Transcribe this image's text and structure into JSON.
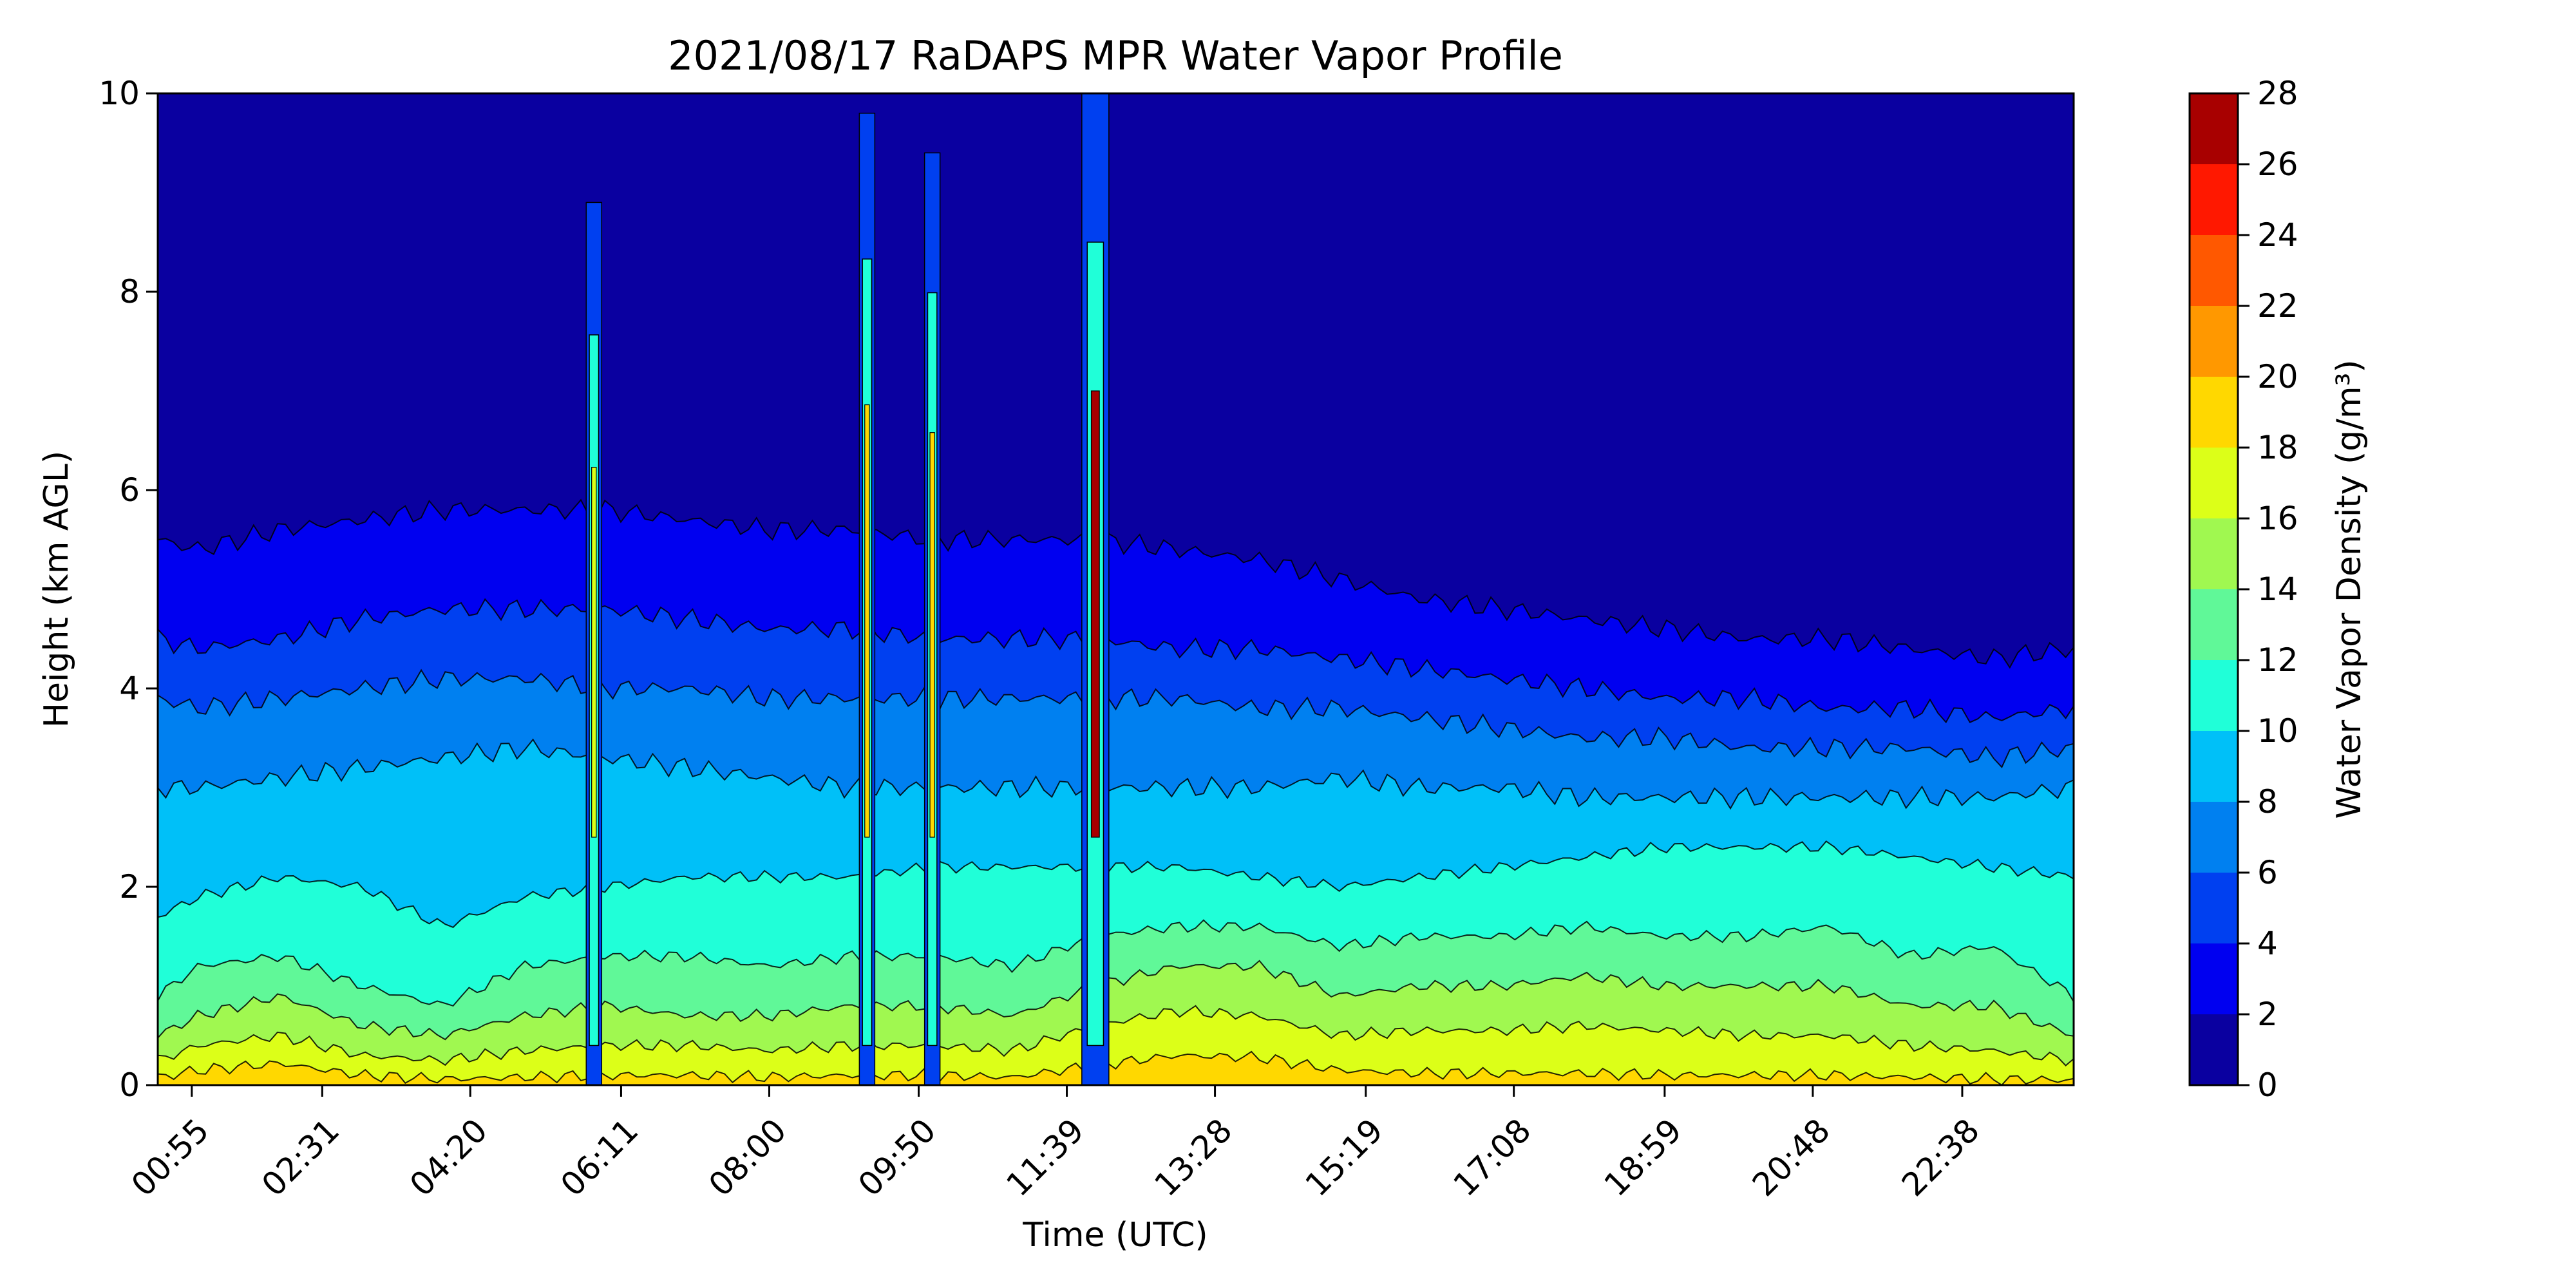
{
  "chart_data": {
    "type": "heatmap",
    "title": "2021/08/17 RaDAPS MPR Water Vapor Profile",
    "xlabel": "Time (UTC)",
    "ylabel": "Height (km AGL)",
    "colorbar_label": "Water Vapor Density (g/m³)",
    "x_unit": "hours UTC",
    "xlim": [
      0.5,
      24.0
    ],
    "ylim": [
      0,
      10
    ],
    "x_ticks": [
      {
        "label": "00:55",
        "hours": 0.917
      },
      {
        "label": "02:31",
        "hours": 2.517
      },
      {
        "label": "04:20",
        "hours": 4.333
      },
      {
        "label": "06:11",
        "hours": 6.183
      },
      {
        "label": "08:00",
        "hours": 8.0
      },
      {
        "label": "09:50",
        "hours": 9.833
      },
      {
        "label": "11:39",
        "hours": 11.65
      },
      {
        "label": "13:28",
        "hours": 13.467
      },
      {
        "label": "15:19",
        "hours": 15.317
      },
      {
        "label": "17:08",
        "hours": 17.133
      },
      {
        "label": "18:59",
        "hours": 18.983
      },
      {
        "label": "20:48",
        "hours": 20.8
      },
      {
        "label": "22:38",
        "hours": 22.633
      }
    ],
    "y_ticks": [
      "0",
      "2",
      "4",
      "6",
      "8",
      "10"
    ],
    "levels": [
      0,
      2,
      4,
      6,
      8,
      10,
      12,
      14,
      16,
      18,
      20,
      22,
      24,
      26,
      28
    ],
    "colorbar_ticks": [
      "0",
      "2",
      "4",
      "6",
      "8",
      "10",
      "12",
      "14",
      "16",
      "18",
      "20",
      "22",
      "24",
      "26",
      "28"
    ],
    "colors": [
      "#0a00a0",
      "#0000f0",
      "#0040f0",
      "#0080f0",
      "#00c0f8",
      "#20ffd8",
      "#60f898",
      "#a0f850",
      "#dcff18",
      "#ffd800",
      "#ff9800",
      "#ff5800",
      "#ff1800",
      "#a80000"
    ],
    "contour_heights_km": {
      "hours": [
        0.5,
        1.0,
        2.0,
        3.0,
        4.0,
        5.0,
        6.0,
        7.0,
        8.0,
        9.0,
        10.0,
        11.0,
        12.0,
        13.0,
        14.0,
        15.0,
        16.0,
        17.0,
        18.0,
        19.0,
        20.0,
        21.0,
        22.0,
        23.0,
        24.0
      ],
      "level_2": [
        5.5,
        5.4,
        5.6,
        5.7,
        5.8,
        5.8,
        5.8,
        5.7,
        5.6,
        5.6,
        5.5,
        5.5,
        5.5,
        5.4,
        5.3,
        5.1,
        4.9,
        4.8,
        4.7,
        4.6,
        4.5,
        4.5,
        4.4,
        4.3,
        4.4
      ],
      "level_4": [
        4.5,
        4.4,
        4.5,
        4.7,
        4.8,
        4.8,
        4.8,
        4.7,
        4.6,
        4.6,
        4.5,
        4.5,
        4.5,
        4.4,
        4.4,
        4.3,
        4.2,
        4.1,
        4.0,
        3.9,
        3.9,
        3.8,
        3.8,
        3.7,
        3.8
      ],
      "level_6": [
        3.9,
        3.8,
        3.9,
        4.0,
        4.1,
        4.1,
        4.0,
        4.0,
        3.9,
        3.9,
        3.9,
        3.9,
        3.9,
        3.9,
        3.8,
        3.8,
        3.7,
        3.6,
        3.5,
        3.5,
        3.4,
        3.4,
        3.4,
        3.3,
        3.4
      ],
      "level_8": [
        3.0,
        3.0,
        3.1,
        3.2,
        3.3,
        3.4,
        3.3,
        3.2,
        3.1,
        3.0,
        3.0,
        3.0,
        3.0,
        3.0,
        3.0,
        3.1,
        3.0,
        3.0,
        2.9,
        2.9,
        2.9,
        2.9,
        2.9,
        2.9,
        3.0
      ],
      "level_10": [
        1.7,
        1.9,
        2.1,
        2.0,
        1.6,
        1.9,
        2.0,
        2.1,
        2.1,
        2.1,
        2.2,
        2.2,
        2.2,
        2.2,
        2.1,
        2.0,
        2.1,
        2.2,
        2.3,
        2.4,
        2.4,
        2.4,
        2.3,
        2.2,
        2.1
      ],
      "level_12": [
        0.9,
        1.2,
        1.3,
        1.0,
        0.8,
        1.2,
        1.3,
        1.3,
        1.2,
        1.3,
        1.3,
        1.2,
        1.5,
        1.6,
        1.6,
        1.4,
        1.5,
        1.5,
        1.6,
        1.5,
        1.5,
        1.6,
        1.3,
        1.4,
        0.9
      ],
      "level_14": [
        0.5,
        0.7,
        0.9,
        0.6,
        0.5,
        0.7,
        0.8,
        0.7,
        0.7,
        0.8,
        0.8,
        0.7,
        1.0,
        1.2,
        1.2,
        0.9,
        1.0,
        1.0,
        1.1,
        1.0,
        1.0,
        1.0,
        0.8,
        0.8,
        0.5
      ],
      "level_16": [
        0.25,
        0.4,
        0.5,
        0.3,
        0.25,
        0.35,
        0.4,
        0.4,
        0.35,
        0.4,
        0.4,
        0.35,
        0.6,
        0.75,
        0.7,
        0.5,
        0.55,
        0.55,
        0.6,
        0.55,
        0.5,
        0.5,
        0.4,
        0.35,
        0.25
      ],
      "level_18": [
        0.08,
        0.15,
        0.22,
        0.1,
        0.06,
        0.08,
        0.1,
        0.1,
        0.08,
        0.1,
        0.1,
        0.08,
        0.2,
        0.3,
        0.28,
        0.15,
        0.12,
        0.12,
        0.12,
        0.1,
        0.1,
        0.1,
        0.08,
        0.06,
        0.05
      ]
    },
    "spikes": [
      {
        "hours": 5.85,
        "top_km": 8.9,
        "peak": 16
      },
      {
        "hours": 9.2,
        "top_km": 9.8,
        "peak": 18
      },
      {
        "hours": 10.0,
        "top_km": 9.4,
        "peak": 18
      },
      {
        "hours": 12.0,
        "top_km": 10.0,
        "peak": 28
      }
    ]
  }
}
